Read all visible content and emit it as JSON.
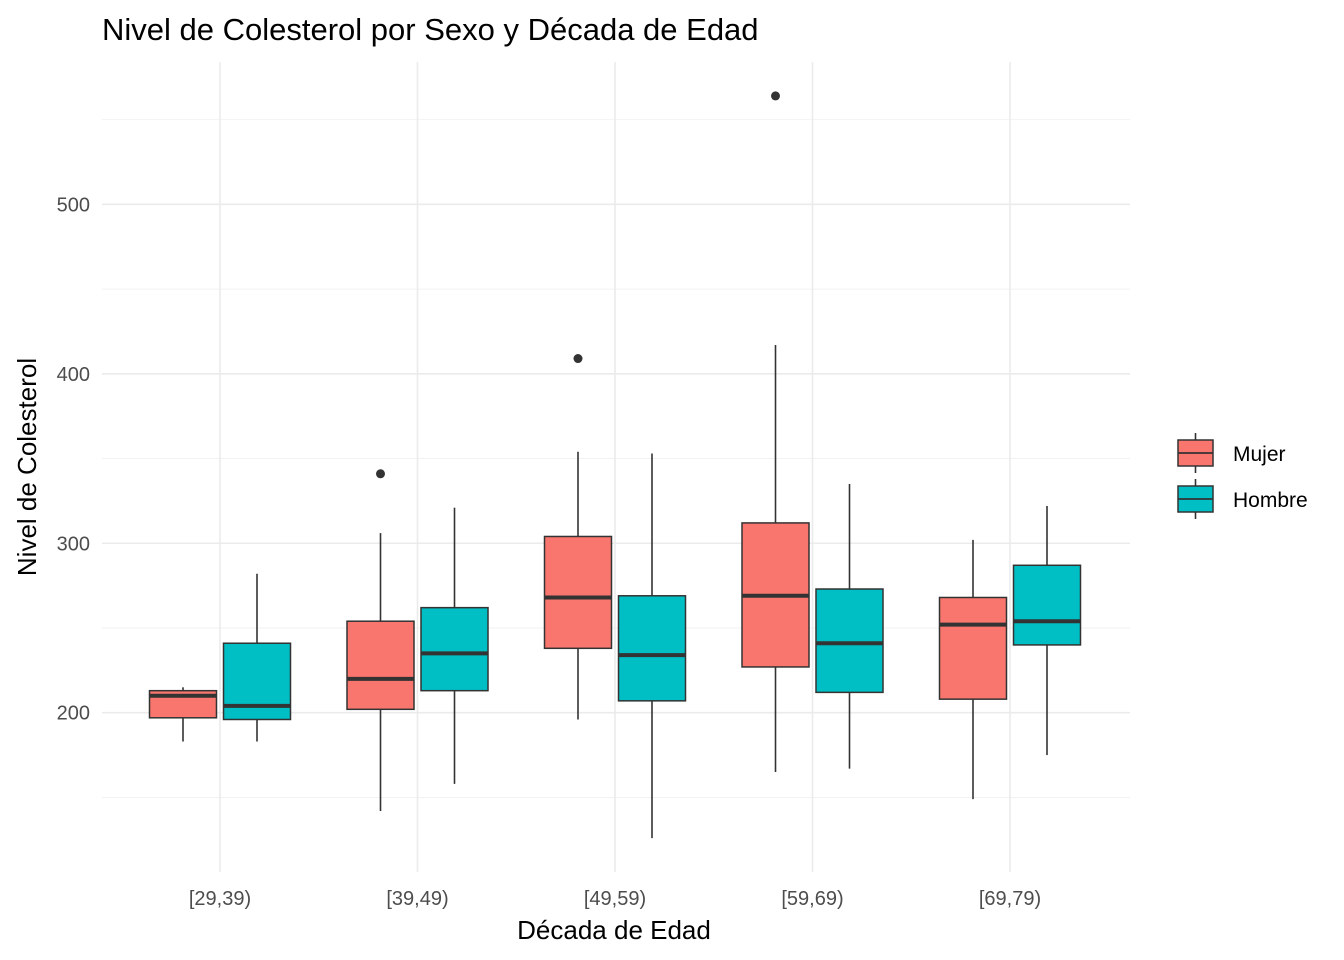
{
  "chart_data": {
    "type": "box",
    "title": "Nivel de Colesterol por Sexo y Década de Edad",
    "xlabel": "Década de Edad",
    "ylabel": "Nivel de Colesterol",
    "categories": [
      "[29,39)",
      "[39,49)",
      "[49,59)",
      "[59,69)",
      "[69,79)"
    ],
    "ylim": [
      106,
      584
    ],
    "y_ticks": [
      200,
      300,
      400,
      500
    ],
    "grid": true,
    "legend_position": "right",
    "series": [
      {
        "name": "Mujer",
        "color": "#F8766D",
        "boxes": [
          {
            "min": 183,
            "q1": 197,
            "median": 210,
            "q3": 213,
            "max": 215,
            "outliers": []
          },
          {
            "min": 142,
            "q1": 202,
            "median": 220,
            "q3": 254,
            "max": 306,
            "outliers": [
              341
            ]
          },
          {
            "min": 196,
            "q1": 238,
            "median": 268,
            "q3": 304,
            "max": 354,
            "outliers": [
              409
            ]
          },
          {
            "min": 165,
            "q1": 227,
            "median": 269,
            "q3": 312,
            "max": 417,
            "outliers": [
              564
            ]
          },
          {
            "min": 149,
            "q1": 208,
            "median": 252,
            "q3": 268,
            "max": 302,
            "outliers": []
          }
        ]
      },
      {
        "name": "Hombre",
        "color": "#00BFC4",
        "boxes": [
          {
            "min": 183,
            "q1": 196,
            "median": 204,
            "q3": 241,
            "max": 282,
            "outliers": []
          },
          {
            "min": 158,
            "q1": 213,
            "median": 235,
            "q3": 262,
            "max": 321,
            "outliers": []
          },
          {
            "min": 126,
            "q1": 207,
            "median": 234,
            "q3": 269,
            "max": 353,
            "outliers": []
          },
          {
            "min": 167,
            "q1": 212,
            "median": 241,
            "q3": 273,
            "max": 335,
            "outliers": []
          },
          {
            "min": 175,
            "q1": 240,
            "median": 254,
            "q3": 287,
            "max": 322,
            "outliers": []
          }
        ]
      }
    ]
  }
}
